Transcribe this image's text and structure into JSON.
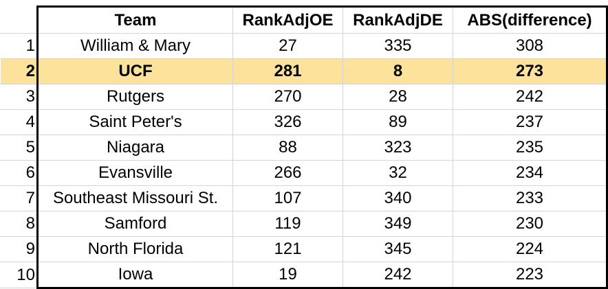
{
  "table": {
    "headers": {
      "index": "",
      "team": "Team",
      "oe": "RankAdjOE",
      "de": "RankAdjDE",
      "abs": "ABS(difference)"
    },
    "rows": [
      {
        "idx": "1",
        "team": "William & Mary",
        "oe": "27",
        "de": "335",
        "abs": "308"
      },
      {
        "idx": "2",
        "team": "UCF",
        "oe": "281",
        "de": "8",
        "abs": "273"
      },
      {
        "idx": "3",
        "team": "Rutgers",
        "oe": "270",
        "de": "28",
        "abs": "242"
      },
      {
        "idx": "4",
        "team": "Saint Peter's",
        "oe": "326",
        "de": "89",
        "abs": "237"
      },
      {
        "idx": "5",
        "team": "Niagara",
        "oe": "88",
        "de": "323",
        "abs": "235"
      },
      {
        "idx": "6",
        "team": "Evansville",
        "oe": "266",
        "de": "32",
        "abs": "234"
      },
      {
        "idx": "7",
        "team": "Southeast Missouri St.",
        "oe": "107",
        "de": "340",
        "abs": "233"
      },
      {
        "idx": "8",
        "team": "Samford",
        "oe": "119",
        "de": "349",
        "abs": "230"
      },
      {
        "idx": "9",
        "team": "North Florida",
        "oe": "121",
        "de": "345",
        "abs": "224"
      },
      {
        "idx": "10",
        "team": "Iowa",
        "oe": "19",
        "de": "242",
        "abs": "223"
      }
    ],
    "highlight_row": "2",
    "highlight_color": "#fde29b"
  }
}
